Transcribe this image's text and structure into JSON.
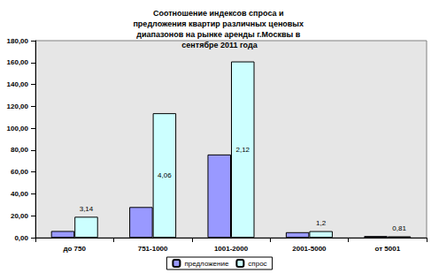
{
  "chart_data": {
    "type": "bar",
    "title": "Соотношение индексов спроса и предложения квартир различных ценовых диапазонов на рынке аренды г.Москвы в сентябре 2011 года",
    "categories": [
      "до 750",
      "751-1000",
      "1001-2000",
      "2001-5000",
      "от 5001"
    ],
    "series": [
      {
        "name": "предложение",
        "color": "#9999ff",
        "values": [
          6.1,
          28,
          76,
          5,
          1.5
        ]
      },
      {
        "name": "спрос",
        "color": "#ccffff",
        "values": [
          19.1,
          113.7,
          161,
          6,
          1.2
        ]
      }
    ],
    "annotations": [
      "3,14",
      "4,06",
      "2,12",
      "1,2",
      "0,81"
    ],
    "ylim": [
      0,
      180
    ],
    "yticks": [
      {
        "value": 0,
        "label": "0,00"
      },
      {
        "value": 20,
        "label": "20,00"
      },
      {
        "value": 40,
        "label": "40,00"
      },
      {
        "value": 60,
        "label": "60,00"
      },
      {
        "value": 80,
        "label": "80,00"
      },
      {
        "value": 100,
        "label": "100,00"
      },
      {
        "value": 120,
        "label": "120,00"
      },
      {
        "value": 140,
        "label": "140,00"
      },
      {
        "value": 160,
        "label": "160,00"
      },
      {
        "value": 180,
        "label": "180,00"
      }
    ],
    "grid": false,
    "legend": "bottom"
  }
}
